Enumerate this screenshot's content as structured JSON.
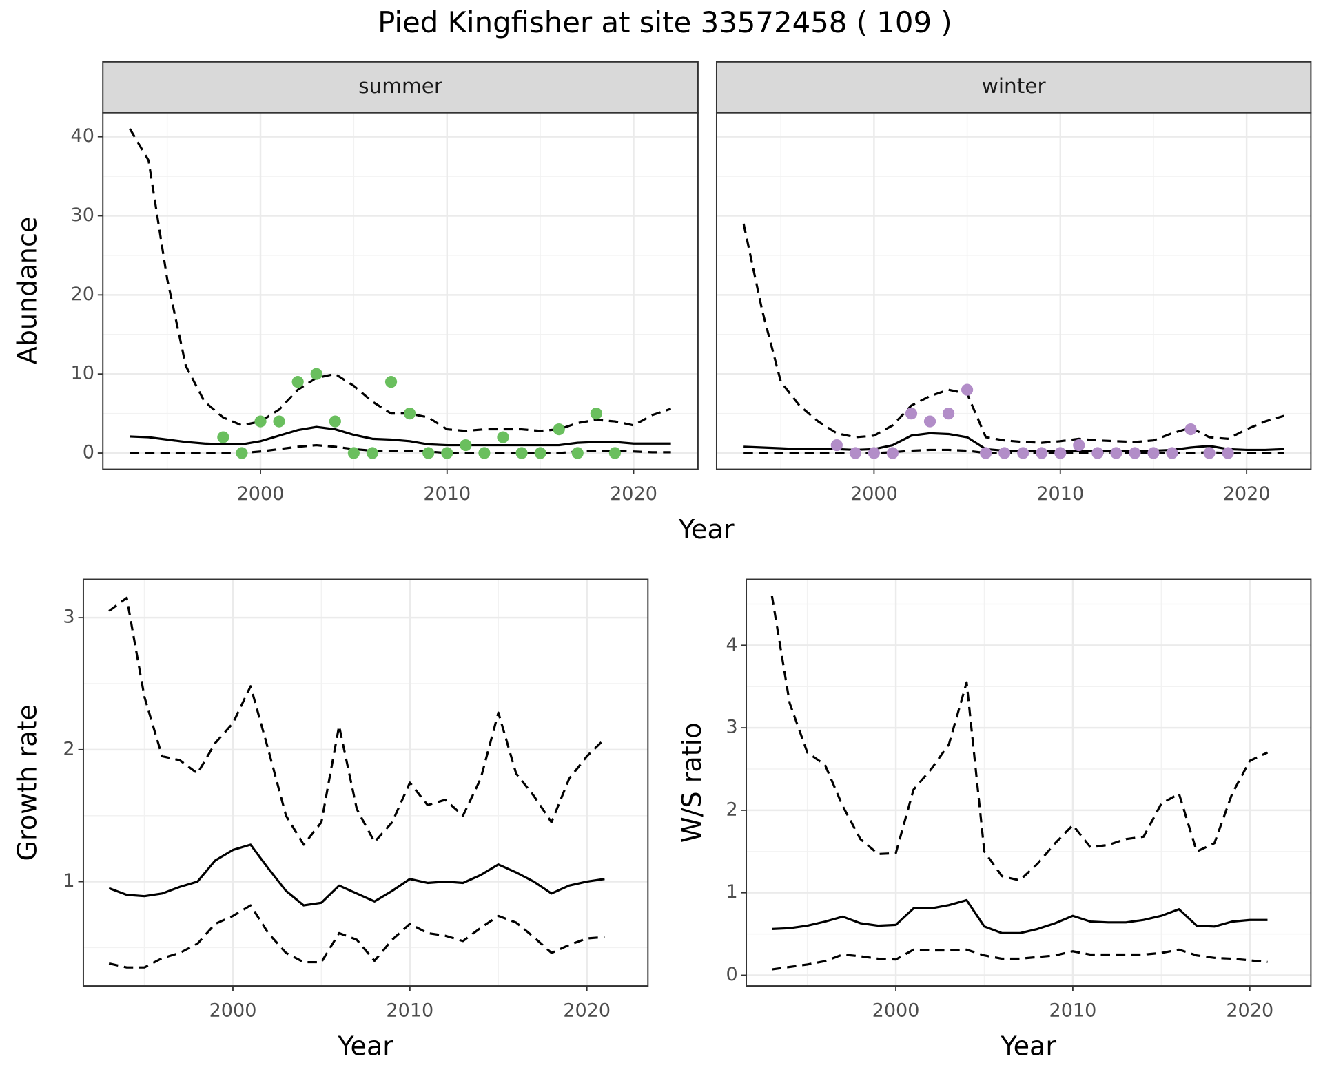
{
  "title": "Pied Kingfisher at site 33572458 ( 109 )",
  "chart_data": [
    {
      "type": "line",
      "facet": "summer",
      "xlabel": "Year",
      "ylabel": "Abundance",
      "xlim": [
        1991.55,
        2023.45
      ],
      "xticks": [
        2000,
        2010,
        2020
      ],
      "ylim": [
        -2.05,
        43.05
      ],
      "yticks": [
        0,
        10,
        20,
        30,
        40
      ],
      "grid": true,
      "x": [
        1993,
        1994,
        1995,
        1996,
        1997,
        1998,
        1999,
        2000,
        2001,
        2002,
        2003,
        2004,
        2005,
        2006,
        2007,
        2008,
        2009,
        2010,
        2011,
        2012,
        2013,
        2014,
        2015,
        2016,
        2017,
        2018,
        2019,
        2020,
        2021,
        2022
      ],
      "series": [
        {
          "color": "#000000",
          "dashed": true,
          "values": [
            41,
            37,
            22,
            11,
            6.5,
            4.5,
            3.5,
            4,
            5.5,
            8,
            9.5,
            10,
            8.5,
            6.5,
            5,
            5,
            4.5,
            3,
            2.8,
            3,
            3,
            3,
            2.8,
            3,
            3.8,
            4.2,
            4,
            3.5,
            4.8,
            5.6
          ]
        },
        {
          "color": "#000000",
          "dashed": false,
          "values": [
            2.1,
            2.0,
            1.7,
            1.4,
            1.2,
            1.1,
            1.1,
            1.5,
            2.2,
            2.9,
            3.3,
            3.0,
            2.3,
            1.8,
            1.7,
            1.5,
            1.1,
            1.0,
            1.0,
            1.0,
            1.0,
            1.0,
            1.0,
            1.0,
            1.3,
            1.4,
            1.4,
            1.2,
            1.2,
            1.2
          ]
        },
        {
          "color": "#000000",
          "dashed": true,
          "values": [
            0,
            0,
            0,
            0,
            0,
            0,
            0,
            0.2,
            0.5,
            0.8,
            1.0,
            0.8,
            0.5,
            0.3,
            0.3,
            0.3,
            0.2,
            0,
            0,
            0,
            0,
            0,
            0,
            0,
            0.2,
            0.3,
            0.3,
            0.2,
            0.1,
            0.1
          ]
        }
      ],
      "points": {
        "color": "#6abf5e",
        "x": [
          1998,
          1999,
          2000,
          2001,
          2002,
          2003,
          2004,
          2005,
          2006,
          2007,
          2008,
          2009,
          2010,
          2011,
          2012,
          2013,
          2014,
          2015,
          2016,
          2017,
          2018,
          2019
        ],
        "values": [
          2,
          0,
          4,
          4,
          9,
          10,
          4,
          0,
          0,
          9,
          5,
          0,
          0,
          1,
          0,
          2,
          0,
          0,
          3,
          0,
          5,
          0
        ]
      }
    },
    {
      "type": "line",
      "facet": "winter",
      "xlim": [
        1991.55,
        2023.45
      ],
      "xticks": [
        2000,
        2010,
        2020
      ],
      "ylim": [
        -2.05,
        43.05
      ],
      "yticks": [
        0,
        10,
        20,
        30,
        40
      ],
      "grid": true,
      "x": [
        1993,
        1994,
        1995,
        1996,
        1997,
        1998,
        1999,
        2000,
        2001,
        2002,
        2003,
        2004,
        2005,
        2006,
        2007,
        2008,
        2009,
        2010,
        2011,
        2012,
        2013,
        2014,
        2015,
        2016,
        2017,
        2018,
        2019,
        2020,
        2021,
        2022
      ],
      "series": [
        {
          "color": "#000000",
          "dashed": true,
          "values": [
            29,
            18,
            9,
            6,
            4,
            2.5,
            2,
            2.2,
            3.5,
            6,
            7.2,
            8,
            7.5,
            2,
            1.6,
            1.4,
            1.3,
            1.5,
            1.8,
            1.6,
            1.5,
            1.4,
            1.6,
            2.5,
            3.2,
            2,
            1.8,
            3,
            4,
            4.7
          ]
        },
        {
          "color": "#000000",
          "dashed": false,
          "values": [
            0.8,
            0.7,
            0.6,
            0.5,
            0.5,
            0.5,
            0.4,
            0.5,
            1.0,
            2.2,
            2.5,
            2.4,
            2.0,
            0.5,
            0.3,
            0.3,
            0.3,
            0.3,
            0.3,
            0.3,
            0.3,
            0.3,
            0.3,
            0.4,
            0.7,
            0.9,
            0.5,
            0.4,
            0.4,
            0.5
          ]
        },
        {
          "color": "#000000",
          "dashed": true,
          "values": [
            0,
            0,
            0,
            0,
            0,
            0,
            0,
            0,
            0.1,
            0.3,
            0.4,
            0.4,
            0.3,
            0,
            0,
            0,
            0,
            0,
            0,
            0,
            0,
            0,
            0,
            0,
            0,
            0.1,
            0,
            0,
            0,
            0
          ]
        }
      ],
      "points": {
        "color": "#b28dc8",
        "x": [
          1998,
          1999,
          2000,
          2001,
          2002,
          2003,
          2004,
          2005,
          2006,
          2007,
          2008,
          2009,
          2010,
          2011,
          2012,
          2013,
          2014,
          2015,
          2016,
          2017,
          2018,
          2019
        ],
        "values": [
          1,
          0,
          0,
          0,
          5,
          4,
          5,
          8,
          0,
          0,
          0,
          0,
          0,
          1,
          0,
          0,
          0,
          0,
          0,
          3,
          0,
          0
        ]
      }
    },
    {
      "type": "line",
      "xlabel": "Year",
      "ylabel": "Growth rate",
      "xlim": [
        1991.55,
        2023.45
      ],
      "xticks": [
        2000,
        2010,
        2020
      ],
      "ylim": [
        0.21,
        3.29
      ],
      "yticks": [
        1,
        2,
        3
      ],
      "grid": true,
      "x": [
        1993,
        1994,
        1995,
        1996,
        1997,
        1998,
        1999,
        2000,
        2001,
        2002,
        2003,
        2004,
        2005,
        2006,
        2007,
        2008,
        2009,
        2010,
        2011,
        2012,
        2013,
        2014,
        2015,
        2016,
        2017,
        2018,
        2019,
        2020,
        2021
      ],
      "series": [
        {
          "color": "#000000",
          "dashed": true,
          "values": [
            3.05,
            3.15,
            2.4,
            1.95,
            1.92,
            1.82,
            2.05,
            2.2,
            2.48,
            2.0,
            1.5,
            1.28,
            1.45,
            2.18,
            1.55,
            1.3,
            1.45,
            1.75,
            1.58,
            1.62,
            1.5,
            1.78,
            2.28,
            1.82,
            1.65,
            1.45,
            1.78,
            1.95,
            2.08
          ]
        },
        {
          "color": "#000000",
          "dashed": false,
          "values": [
            0.95,
            0.9,
            0.89,
            0.91,
            0.96,
            1.0,
            1.16,
            1.24,
            1.28,
            1.1,
            0.93,
            0.82,
            0.84,
            0.97,
            0.91,
            0.85,
            0.93,
            1.02,
            0.99,
            1.0,
            0.99,
            1.05,
            1.13,
            1.07,
            1.0,
            0.91,
            0.97,
            1.0,
            1.02
          ]
        },
        {
          "color": "#000000",
          "dashed": true,
          "values": [
            0.38,
            0.35,
            0.35,
            0.42,
            0.46,
            0.53,
            0.68,
            0.74,
            0.82,
            0.61,
            0.46,
            0.39,
            0.39,
            0.61,
            0.56,
            0.4,
            0.56,
            0.68,
            0.61,
            0.59,
            0.55,
            0.65,
            0.74,
            0.69,
            0.58,
            0.46,
            0.52,
            0.57,
            0.58
          ]
        }
      ]
    },
    {
      "type": "line",
      "xlabel": "Year",
      "ylabel": "W/S ratio",
      "xlim": [
        1991.55,
        2023.45
      ],
      "xticks": [
        2000,
        2010,
        2020
      ],
      "ylim": [
        -0.13,
        4.8
      ],
      "yticks": [
        0,
        1,
        2,
        3,
        4
      ],
      "grid": true,
      "x": [
        1993,
        1994,
        1995,
        1996,
        1997,
        1998,
        1999,
        2000,
        2001,
        2002,
        2003,
        2004,
        2005,
        2006,
        2007,
        2008,
        2009,
        2010,
        2011,
        2012,
        2013,
        2014,
        2015,
        2016,
        2017,
        2018,
        2019,
        2020,
        2021
      ],
      "series": [
        {
          "color": "#000000",
          "dashed": true,
          "values": [
            4.6,
            3.3,
            2.7,
            2.55,
            2.05,
            1.65,
            1.47,
            1.48,
            2.25,
            2.5,
            2.8,
            3.55,
            1.5,
            1.2,
            1.15,
            1.35,
            1.6,
            1.82,
            1.55,
            1.58,
            1.65,
            1.68,
            2.08,
            2.2,
            1.5,
            1.6,
            2.2,
            2.6,
            2.7
          ]
        },
        {
          "color": "#000000",
          "dashed": false,
          "values": [
            0.56,
            0.57,
            0.6,
            0.65,
            0.71,
            0.63,
            0.6,
            0.61,
            0.81,
            0.81,
            0.85,
            0.91,
            0.59,
            0.51,
            0.51,
            0.56,
            0.63,
            0.72,
            0.65,
            0.64,
            0.64,
            0.67,
            0.72,
            0.8,
            0.6,
            0.59,
            0.65,
            0.67,
            0.67
          ]
        },
        {
          "color": "#000000",
          "dashed": true,
          "values": [
            0.07,
            0.1,
            0.13,
            0.17,
            0.25,
            0.23,
            0.2,
            0.19,
            0.31,
            0.3,
            0.3,
            0.31,
            0.24,
            0.2,
            0.2,
            0.22,
            0.24,
            0.29,
            0.25,
            0.25,
            0.25,
            0.25,
            0.27,
            0.31,
            0.24,
            0.21,
            0.2,
            0.18,
            0.16
          ]
        }
      ]
    }
  ]
}
